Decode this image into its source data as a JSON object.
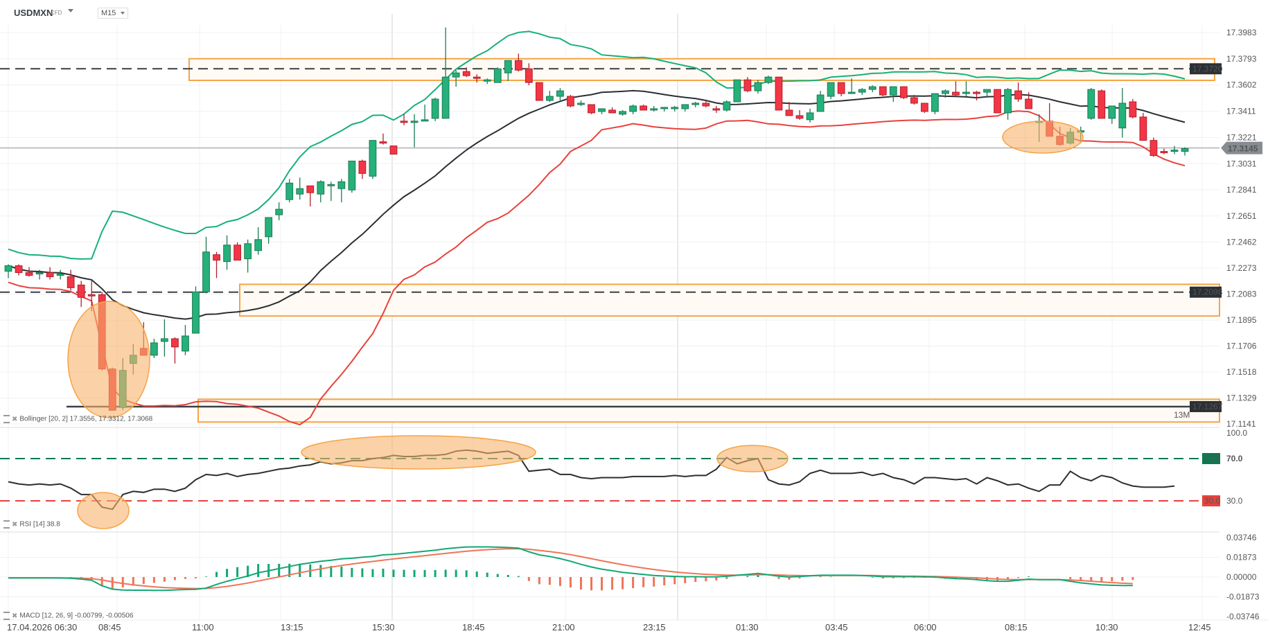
{
  "header": {
    "symbol": "USDMXN",
    "symbol_type": "CFD",
    "timeframe": "M15"
  },
  "colors": {
    "bull": "#26b07a",
    "bear": "#f23645",
    "bb_upper": "#16b07a",
    "bb_mid": "#2a2e33",
    "bb_lower": "#e8413c",
    "zone": "#f5a443",
    "zone_fill": "#fffaf4",
    "highlight": "#f9b26c",
    "rsi_line": "#2a2e33",
    "rsi_70": "#0a7a4f",
    "rsi_30": "#e8413c",
    "macd_line": "#12a774",
    "macd_signal": "#ef7458",
    "hist_pos": "#12a774",
    "hist_neg": "#ef7458",
    "last_price_bg": "#868c91"
  },
  "price_axis": {
    "ticks": [
      "17.3983",
      "17.3793",
      "17.3602",
      "17.3411",
      "17.3221",
      "17.3031",
      "17.2841",
      "17.2651",
      "17.2462",
      "17.2273",
      "17.2083",
      "17.1895",
      "17.1706",
      "17.1518",
      "17.1329",
      "17.1141"
    ],
    "last_price": "17.3145",
    "level_labels": [
      {
        "value": "17.3720"
      },
      {
        "value": "17.2098"
      },
      {
        "value": "17.1267"
      }
    ],
    "watermark": "13M"
  },
  "rsi_axis": {
    "ticks": [
      "100.0",
      "70.0",
      "30.0"
    ],
    "badge_70": "70.0",
    "badge_30": "30.0"
  },
  "macd_axis": {
    "ticks": [
      "0.03746",
      "0.01873",
      "0.00000",
      "-0.01873",
      "-0.03746"
    ]
  },
  "time_axis": {
    "labels": [
      "17.04.2026 06:30",
      "08:45",
      "11:00",
      "13:15",
      "15:30",
      "18:45",
      "21:00",
      "23:15",
      "01:30",
      "03:45",
      "06:00",
      "08:15",
      "10:30",
      "12:45"
    ]
  },
  "indicators": {
    "bollinger": "Bollinger [20, 2] 17.3556, 17.3312, 17.3068",
    "rsi": "RSI [14] 38.8",
    "macd": "MACD [12, 26, 9] -0.00799, -0.00506"
  },
  "chart_data": {
    "type": "candlestick",
    "title": "USDMXN CFD M15",
    "ylim": [
      17.1141,
      17.3983
    ],
    "x_start": "17.04.2026 06:30",
    "interval": "15m",
    "ohlc": [
      [
        17.225,
        17.23,
        17.22,
        17.229
      ],
      [
        17.229,
        17.23,
        17.222,
        17.224
      ],
      [
        17.224,
        17.228,
        17.221,
        17.222
      ],
      [
        17.223,
        17.226,
        17.219,
        17.224
      ],
      [
        17.224,
        17.228,
        17.219,
        17.221
      ],
      [
        17.222,
        17.226,
        17.219,
        17.223
      ],
      [
        17.221,
        17.226,
        17.211,
        17.213
      ],
      [
        17.215,
        17.218,
        17.199,
        17.206
      ],
      [
        17.208,
        17.218,
        17.196,
        17.207
      ],
      [
        17.208,
        17.21,
        17.153,
        17.154
      ],
      [
        17.154,
        17.155,
        17.124,
        17.124
      ],
      [
        17.126,
        17.162,
        17.124,
        17.153
      ],
      [
        17.158,
        17.172,
        17.15,
        17.164
      ],
      [
        17.169,
        17.188,
        17.164,
        17.164
      ],
      [
        17.164,
        17.176,
        17.162,
        17.173
      ],
      [
        17.174,
        17.19,
        17.163,
        17.176
      ],
      [
        17.176,
        17.177,
        17.158,
        17.17
      ],
      [
        17.167,
        17.186,
        17.164,
        17.178
      ],
      [
        17.18,
        17.214,
        17.18,
        17.21
      ],
      [
        17.21,
        17.25,
        17.209,
        17.239
      ],
      [
        17.237,
        17.239,
        17.22,
        17.233
      ],
      [
        17.232,
        17.251,
        17.226,
        17.244
      ],
      [
        17.244,
        17.246,
        17.233,
        17.233
      ],
      [
        17.234,
        17.248,
        17.224,
        17.245
      ],
      [
        17.24,
        17.257,
        17.237,
        17.248
      ],
      [
        17.25,
        17.261,
        17.245,
        17.264
      ],
      [
        17.266,
        17.275,
        17.262,
        17.27
      ],
      [
        17.277,
        17.292,
        17.275,
        17.289
      ],
      [
        17.281,
        17.293,
        17.277,
        17.285
      ],
      [
        17.287,
        17.287,
        17.272,
        17.282
      ],
      [
        17.281,
        17.291,
        17.275,
        17.29
      ],
      [
        17.287,
        17.29,
        17.276,
        17.288
      ],
      [
        17.285,
        17.292,
        17.275,
        17.29
      ],
      [
        17.284,
        17.301,
        17.282,
        17.305
      ],
      [
        17.305,
        17.306,
        17.292,
        17.296
      ],
      [
        17.294,
        17.32,
        17.292,
        17.32
      ],
      [
        17.319,
        17.325,
        17.317,
        17.318
      ],
      [
        17.316,
        17.316,
        17.31,
        17.31
      ],
      [
        17.334,
        17.339,
        17.331,
        17.333
      ],
      [
        17.333,
        17.339,
        17.315,
        17.334
      ],
      [
        17.334,
        17.346,
        17.334,
        17.335
      ],
      [
        17.336,
        17.351,
        17.334,
        17.35
      ],
      [
        17.336,
        17.402,
        17.336,
        17.366
      ],
      [
        17.366,
        17.371,
        17.359,
        17.369
      ],
      [
        17.37,
        17.373,
        17.366,
        17.367
      ],
      [
        17.366,
        17.368,
        17.362,
        17.365
      ],
      [
        17.363,
        17.365,
        17.361,
        17.364
      ],
      [
        17.362,
        17.373,
        17.362,
        17.372
      ],
      [
        17.369,
        17.378,
        17.363,
        17.378
      ],
      [
        17.378,
        17.383,
        17.37,
        17.371
      ],
      [
        17.372,
        17.376,
        17.36,
        17.362
      ],
      [
        17.362,
        17.362,
        17.349,
        17.349
      ],
      [
        17.349,
        17.356,
        17.348,
        17.352
      ],
      [
        17.352,
        17.358,
        17.349,
        17.356
      ],
      [
        17.352,
        17.353,
        17.344,
        17.345
      ],
      [
        17.346,
        17.349,
        17.345,
        17.347
      ],
      [
        17.346,
        17.346,
        17.339,
        17.34
      ],
      [
        17.341,
        17.343,
        17.339,
        17.343
      ],
      [
        17.342,
        17.344,
        17.34,
        17.34
      ],
      [
        17.339,
        17.342,
        17.338,
        17.341
      ],
      [
        17.341,
        17.346,
        17.339,
        17.345
      ],
      [
        17.345,
        17.346,
        17.342,
        17.342
      ],
      [
        17.342,
        17.345,
        17.341,
        17.343
      ],
      [
        17.343,
        17.344,
        17.341,
        17.344
      ],
      [
        17.343,
        17.345,
        17.341,
        17.344
      ],
      [
        17.343,
        17.345,
        17.341,
        17.346
      ],
      [
        17.346,
        17.348,
        17.344,
        17.347
      ],
      [
        17.347,
        17.349,
        17.344,
        17.345
      ],
      [
        17.343,
        17.345,
        17.34,
        17.342
      ],
      [
        17.342,
        17.349,
        17.341,
        17.348
      ],
      [
        17.348,
        17.364,
        17.348,
        17.364
      ],
      [
        17.364,
        17.366,
        17.355,
        17.356
      ],
      [
        17.356,
        17.364,
        17.354,
        17.362
      ],
      [
        17.362,
        17.367,
        17.361,
        17.366
      ],
      [
        17.366,
        17.366,
        17.342,
        17.342
      ],
      [
        17.342,
        17.348,
        17.338,
        17.338
      ],
      [
        17.338,
        17.342,
        17.335,
        17.336
      ],
      [
        17.335,
        17.343,
        17.333,
        17.34
      ],
      [
        17.341,
        17.356,
        17.341,
        17.353
      ],
      [
        17.352,
        17.362,
        17.35,
        17.362
      ],
      [
        17.362,
        17.362,
        17.352,
        17.354
      ],
      [
        17.355,
        17.365,
        17.355,
        17.355
      ],
      [
        17.355,
        17.358,
        17.353,
        17.357
      ],
      [
        17.357,
        17.36,
        17.355,
        17.359
      ],
      [
        17.359,
        17.359,
        17.352,
        17.353
      ],
      [
        17.353,
        17.359,
        17.348,
        17.359
      ],
      [
        17.359,
        17.359,
        17.35,
        17.351
      ],
      [
        17.351,
        17.353,
        17.346,
        17.347
      ],
      [
        17.347,
        17.347,
        17.34,
        17.341
      ],
      [
        17.341,
        17.354,
        17.339,
        17.354
      ],
      [
        17.354,
        17.357,
        17.351,
        17.356
      ],
      [
        17.355,
        17.363,
        17.352,
        17.353
      ],
      [
        17.354,
        17.363,
        17.352,
        17.355
      ],
      [
        17.355,
        17.356,
        17.349,
        17.354
      ],
      [
        17.355,
        17.357,
        17.351,
        17.357
      ],
      [
        17.357,
        17.357,
        17.341,
        17.34
      ],
      [
        17.34,
        17.358,
        17.335,
        17.357
      ],
      [
        17.356,
        17.362,
        17.348,
        17.35
      ],
      [
        17.35,
        17.355,
        17.344,
        17.343
      ],
      [
        17.333,
        17.339,
        17.319,
        17.334
      ],
      [
        17.334,
        17.347,
        17.325,
        17.323
      ],
      [
        17.323,
        17.33,
        17.316,
        17.317
      ],
      [
        17.318,
        17.329,
        17.317,
        17.326
      ],
      [
        17.327,
        17.33,
        17.318,
        17.327
      ],
      [
        17.336,
        17.358,
        17.335,
        17.357
      ],
      [
        17.356,
        17.357,
        17.34,
        17.336
      ],
      [
        17.336,
        17.345,
        17.332,
        17.345
      ],
      [
        17.329,
        17.358,
        17.322,
        17.347
      ],
      [
        17.348,
        17.35,
        17.336,
        17.337
      ],
      [
        17.337,
        17.34,
        17.326,
        17.32
      ],
      [
        17.32,
        17.322,
        17.308,
        17.309
      ],
      [
        17.312,
        17.314,
        17.31,
        17.311
      ],
      [
        17.312,
        17.316,
        17.31,
        17.313
      ],
      [
        17.312,
        17.315,
        17.309,
        17.314
      ]
    ],
    "bollinger": {
      "params": "20, 2",
      "last": {
        "upper": 17.3556,
        "middle": 17.3312,
        "lower": 17.3068
      }
    },
    "levels": [
      17.372,
      17.2098,
      17.1267
    ],
    "zones": [
      [
        17.3636,
        17.3793
      ],
      [
        17.1925,
        17.2155
      ],
      [
        17.1155,
        17.132
      ]
    ],
    "rsi": {
      "period": 14,
      "last": 38.8,
      "overbought": 70,
      "oversold": 30,
      "values": [
        48,
        46,
        45,
        46,
        45,
        46,
        42,
        36,
        36,
        24,
        22,
        36,
        39,
        38,
        41,
        41,
        39,
        42,
        50,
        55,
        54,
        56,
        53,
        55,
        56,
        58,
        60,
        61,
        63,
        64,
        67,
        65,
        66,
        68,
        68,
        70,
        71,
        73,
        72,
        72,
        73,
        73,
        74,
        77,
        78,
        77,
        75,
        76,
        77,
        73,
        58,
        59,
        60,
        55,
        55,
        52,
        51,
        52,
        52,
        52,
        53,
        53,
        53,
        53,
        54,
        53,
        54,
        54,
        60,
        71,
        65,
        68,
        70,
        50,
        46,
        45,
        48,
        56,
        59,
        56,
        56,
        56,
        57,
        54,
        56,
        52,
        50,
        46,
        52,
        52,
        51,
        50,
        51,
        46,
        52,
        49,
        45,
        46,
        42,
        39,
        45,
        45,
        58,
        52,
        49,
        54,
        52,
        47,
        44,
        43,
        43,
        43,
        44
      ]
    },
    "macd": {
      "params": "12, 26, 9",
      "last_macd": -0.00799,
      "last_signal": -0.00506,
      "macd_values": [
        -0.0008,
        -0.0008,
        -0.0008,
        -0.0008,
        -0.0008,
        -0.0009,
        -0.0012,
        -0.002,
        -0.003,
        -0.0083,
        -0.0115,
        -0.0123,
        -0.0125,
        -0.0125,
        -0.0127,
        -0.0127,
        -0.0122,
        -0.0118,
        -0.0117,
        -0.0105,
        -0.007,
        -0.004,
        -0.0015,
        0.001,
        0.004,
        0.006,
        0.008,
        0.01,
        0.012,
        0.0135,
        0.015,
        0.016,
        0.0172,
        0.0178,
        0.0188,
        0.0195,
        0.021,
        0.0215,
        0.0225,
        0.0235,
        0.0245,
        0.0255,
        0.0268,
        0.0278,
        0.0285,
        0.0286,
        0.0286,
        0.0283,
        0.028,
        0.0275,
        0.024,
        0.021,
        0.0195,
        0.0175,
        0.015,
        0.012,
        0.0095,
        0.0075,
        0.006,
        0.0045,
        0.0035,
        0.0025,
        0.0015,
        0.001,
        0.0006,
        0.0003,
        0.0003,
        0.0001,
        0.0001,
        0.0007,
        0.0017,
        0.0025,
        0.0035,
        0.0022,
        0.0008,
        0.0,
        0.0005,
        0.0012,
        0.0017,
        0.0017,
        0.0017,
        0.0017,
        0.0015,
        0.001,
        0.0003,
        0.0003,
        0.0003,
        0.0003,
        0.0002,
        0.0,
        -0.0008,
        -0.0015,
        -0.0018,
        -0.0025,
        -0.0035,
        -0.004,
        -0.004,
        -0.003,
        -0.002,
        -0.0025,
        -0.0025,
        -0.0025,
        -0.004,
        -0.0055,
        -0.0065,
        -0.0075,
        -0.0078,
        -0.008,
        -0.008
      ]
    },
    "annotations": [
      "orange highlight ellipses on 08:45 sell-off, 15:30–19:45 RSI overbought, 01:30 RSI peak, 08:15–09:30 lows"
    ]
  }
}
